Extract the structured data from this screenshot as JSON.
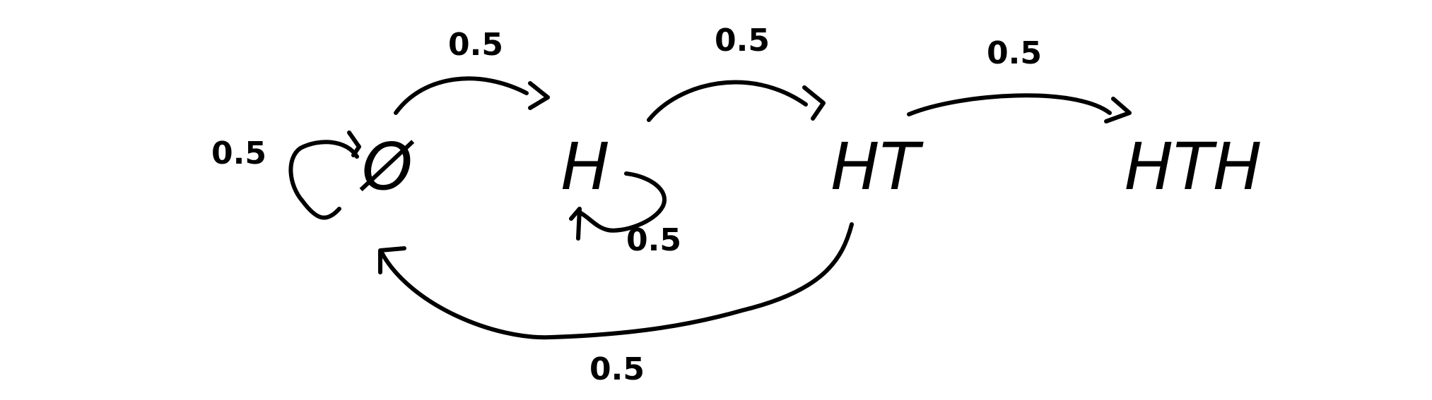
{
  "states": {
    "empty": "Ø",
    "h": "H",
    "ht": "HT",
    "hth": "HTH"
  },
  "transitions": {
    "empty_self": "0.5",
    "empty_to_h": "0.5",
    "h_self": "0.5",
    "h_to_ht": "0.5",
    "ht_to_hth": "0.5",
    "ht_to_empty": "0.5"
  },
  "colors": {
    "ink": "#000000",
    "background": "#ffffff"
  }
}
